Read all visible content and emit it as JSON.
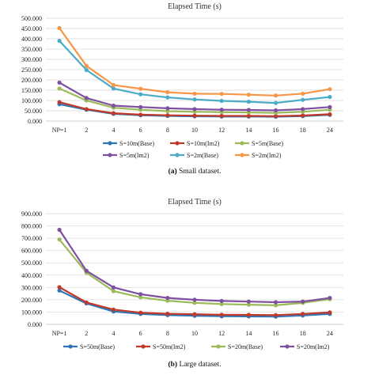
{
  "chart_data": [
    {
      "type": "line",
      "title": "Elapsed Time (s)",
      "caption_prefix": "(a)",
      "caption_text": "Small dataset.",
      "categories": [
        "NP=1",
        "2",
        "4",
        "6",
        "8",
        "10",
        "12",
        "14",
        "16",
        "18",
        "24"
      ],
      "ylim": [
        0,
        500000
      ],
      "yticks": [
        0,
        50000,
        100000,
        150000,
        200000,
        250000,
        300000,
        350000,
        400000,
        450000,
        500000
      ],
      "ytick_labels": [
        "0.000",
        "50.000",
        "100.000",
        "150.000",
        "200.000",
        "250.000",
        "300.000",
        "350.000",
        "400.000",
        "450.000",
        "500.000"
      ],
      "grid": true,
      "legend_position": "bottom",
      "series": [
        {
          "name": "S=10m(Base)",
          "color": "#2e75b6",
          "values": [
            82000,
            55000,
            35000,
            28000,
            25000,
            23000,
            22000,
            22000,
            21000,
            24000,
            30000
          ]
        },
        {
          "name": "S=10m(Im2)",
          "color": "#c0392b",
          "values": [
            92000,
            58000,
            38000,
            31000,
            28000,
            26000,
            25000,
            25000,
            24000,
            27000,
            33000
          ]
        },
        {
          "name": "S=5m(Base)",
          "color": "#9bbb59",
          "values": [
            158000,
            100000,
            65000,
            55000,
            48000,
            45000,
            43000,
            42000,
            40000,
            45000,
            55000
          ]
        },
        {
          "name": "S=5m(Im2)",
          "color": "#7f4fa0",
          "values": [
            187000,
            112000,
            75000,
            68000,
            62000,
            58000,
            55000,
            54000,
            52000,
            58000,
            68000
          ]
        },
        {
          "name": "S=2m(Base)",
          "color": "#4bacc6",
          "values": [
            390000,
            248000,
            158000,
            130000,
            115000,
            105000,
            98000,
            94000,
            88000,
            103000,
            117000
          ]
        },
        {
          "name": "S=2m(Im2)",
          "color": "#f79646",
          "values": [
            452000,
            268000,
            175000,
            157000,
            140000,
            133000,
            132000,
            128000,
            124000,
            133000,
            155000
          ]
        }
      ]
    },
    {
      "type": "line",
      "title": "Elapsed Time (s)",
      "caption_prefix": "(b)",
      "caption_text": "Large dataset.",
      "categories": [
        "NP=1",
        "2",
        "4",
        "6",
        "8",
        "10",
        "12",
        "14",
        "16",
        "18",
        "24"
      ],
      "ylim": [
        0,
        900000
      ],
      "yticks": [
        0,
        100000,
        200000,
        300000,
        400000,
        500000,
        600000,
        700000,
        800000,
        900000
      ],
      "ytick_labels": [
        "0.000",
        "100.000",
        "200.000",
        "300.000",
        "400.000",
        "500.000",
        "600.000",
        "700.000",
        "800.000",
        "900.000"
      ],
      "grid": true,
      "legend_position": "bottom",
      "series": [
        {
          "name": "S=50m(Base)",
          "color": "#2e75b6",
          "values": [
            275000,
            170000,
            105000,
            85000,
            75000,
            70000,
            66000,
            65000,
            63000,
            72000,
            85000
          ]
        },
        {
          "name": "S=50m(Im2)",
          "color": "#c0392b",
          "values": [
            302000,
            178000,
            120000,
            95000,
            86000,
            82000,
            78000,
            77000,
            75000,
            85000,
            97000
          ]
        },
        {
          "name": "S=20m(Base)",
          "color": "#9bbb59",
          "values": [
            690000,
            420000,
            270000,
            220000,
            192000,
            175000,
            165000,
            160000,
            155000,
            175000,
            205000
          ]
        },
        {
          "name": "S=20m(Im2)",
          "color": "#7f4fa0",
          "values": [
            768000,
            435000,
            300000,
            245000,
            215000,
            200000,
            190000,
            185000,
            180000,
            185000,
            215000
          ]
        }
      ]
    }
  ]
}
